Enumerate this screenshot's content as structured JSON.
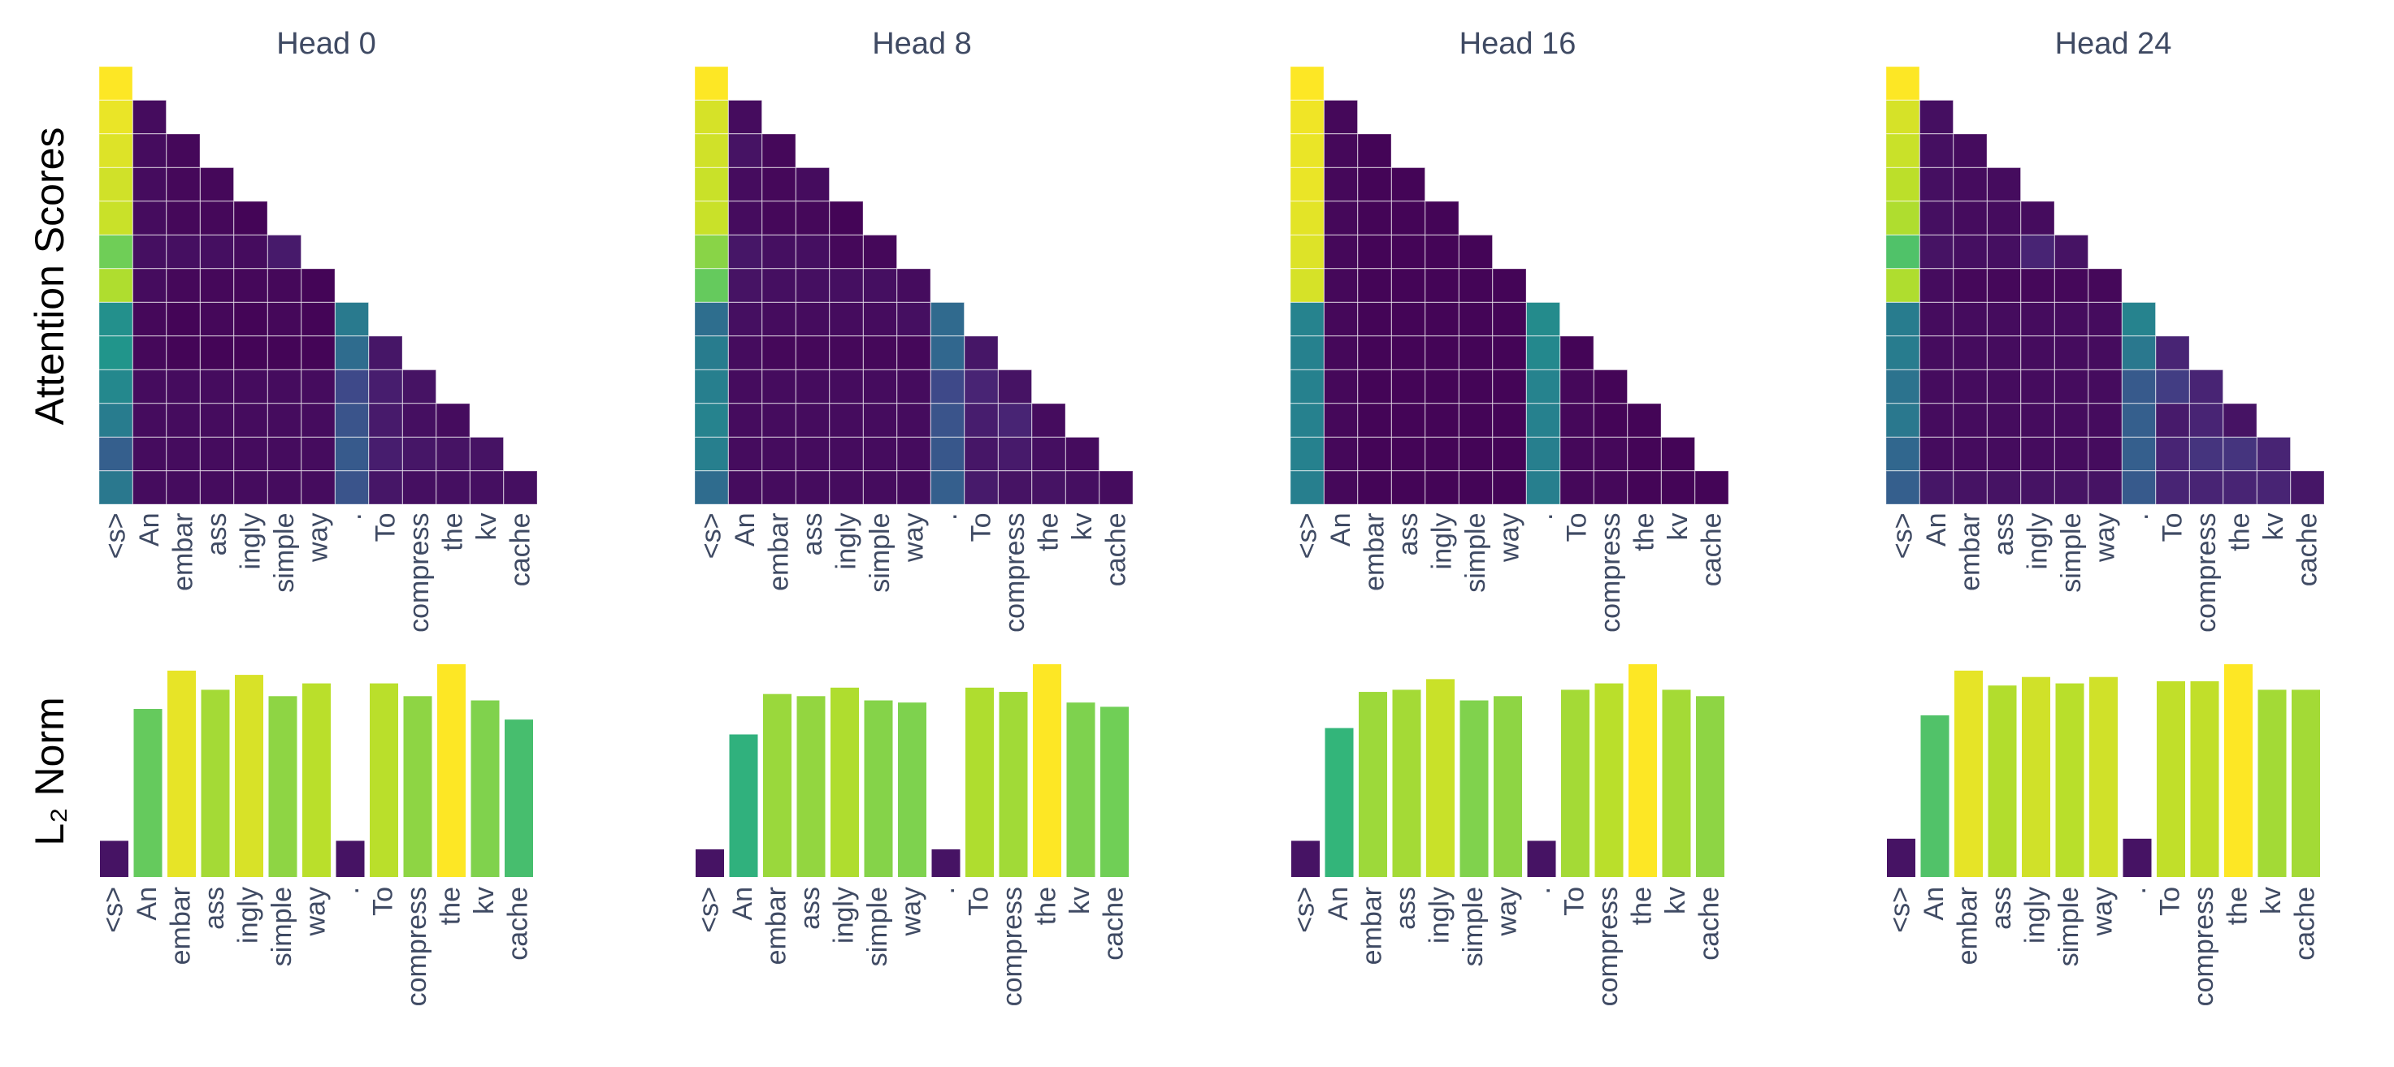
{
  "figure": {
    "row_labels": [
      "Attention Scores",
      "L₂ Norm"
    ]
  },
  "chart_data": [
    {
      "type": "heatmap",
      "title": "Head 0",
      "tokens": [
        "<s>",
        "An",
        "embar",
        "ass",
        "ingly",
        "simple",
        "way",
        ".",
        "To",
        "compress",
        "the",
        "kv",
        "cache"
      ],
      "values": [
        [
          1.0
        ],
        [
          0.97,
          0.03
        ],
        [
          0.95,
          0.03,
          0.02
        ],
        [
          0.93,
          0.03,
          0.02,
          0.02
        ],
        [
          0.92,
          0.03,
          0.02,
          0.02,
          0.01
        ],
        [
          0.78,
          0.04,
          0.04,
          0.04,
          0.03,
          0.07
        ],
        [
          0.88,
          0.03,
          0.02,
          0.02,
          0.02,
          0.02,
          0.01
        ],
        [
          0.5,
          0.02,
          0.01,
          0.02,
          0.01,
          0.02,
          0.01,
          0.41
        ],
        [
          0.52,
          0.02,
          0.01,
          0.01,
          0.01,
          0.01,
          0.01,
          0.35,
          0.06
        ],
        [
          0.47,
          0.03,
          0.03,
          0.03,
          0.03,
          0.03,
          0.03,
          0.22,
          0.08,
          0.05
        ],
        [
          0.42,
          0.03,
          0.03,
          0.03,
          0.03,
          0.03,
          0.03,
          0.26,
          0.07,
          0.04,
          0.03
        ],
        [
          0.3,
          0.03,
          0.03,
          0.03,
          0.03,
          0.03,
          0.03,
          0.28,
          0.08,
          0.06,
          0.05,
          0.05
        ],
        [
          0.4,
          0.03,
          0.03,
          0.03,
          0.03,
          0.03,
          0.03,
          0.26,
          0.06,
          0.04,
          0.04,
          0.04,
          0.04
        ]
      ]
    },
    {
      "type": "heatmap",
      "title": "Head 8",
      "tokens": [
        "<s>",
        "An",
        "embar",
        "ass",
        "ingly",
        "simple",
        "way",
        ".",
        "To",
        "compress",
        "the",
        "kv",
        "cache"
      ],
      "values": [
        [
          1.0
        ],
        [
          0.94,
          0.03
        ],
        [
          0.93,
          0.05,
          0.02
        ],
        [
          0.92,
          0.03,
          0.02,
          0.03
        ],
        [
          0.92,
          0.03,
          0.02,
          0.02,
          0.01
        ],
        [
          0.82,
          0.06,
          0.04,
          0.04,
          0.02,
          0.02
        ],
        [
          0.76,
          0.05,
          0.04,
          0.04,
          0.04,
          0.04,
          0.03
        ],
        [
          0.36,
          0.04,
          0.03,
          0.03,
          0.03,
          0.03,
          0.04,
          0.34
        ],
        [
          0.42,
          0.03,
          0.02,
          0.02,
          0.02,
          0.02,
          0.02,
          0.33,
          0.06
        ],
        [
          0.43,
          0.03,
          0.03,
          0.03,
          0.03,
          0.03,
          0.03,
          0.22,
          0.1,
          0.05
        ],
        [
          0.45,
          0.03,
          0.03,
          0.03,
          0.03,
          0.03,
          0.03,
          0.26,
          0.08,
          0.1,
          0.03
        ],
        [
          0.43,
          0.03,
          0.03,
          0.03,
          0.03,
          0.03,
          0.03,
          0.27,
          0.06,
          0.07,
          0.04,
          0.03
        ],
        [
          0.35,
          0.03,
          0.03,
          0.03,
          0.03,
          0.03,
          0.03,
          0.3,
          0.07,
          0.05,
          0.05,
          0.04,
          0.03
        ]
      ]
    },
    {
      "type": "heatmap",
      "title": "Head 16",
      "tokens": [
        "<s>",
        "An",
        "embar",
        "ass",
        "ingly",
        "simple",
        "way",
        ".",
        "To",
        "compress",
        "the",
        "kv",
        "cache"
      ],
      "values": [
        [
          1.0
        ],
        [
          0.98,
          0.02
        ],
        [
          0.97,
          0.02,
          0.01
        ],
        [
          0.97,
          0.02,
          0.01,
          0.01
        ],
        [
          0.96,
          0.02,
          0.01,
          0.01,
          0.01
        ],
        [
          0.95,
          0.02,
          0.01,
          0.01,
          0.01,
          0.01
        ],
        [
          0.94,
          0.02,
          0.01,
          0.01,
          0.01,
          0.01,
          0.01
        ],
        [
          0.45,
          0.02,
          0.01,
          0.01,
          0.01,
          0.01,
          0.01,
          0.48
        ],
        [
          0.44,
          0.02,
          0.01,
          0.01,
          0.01,
          0.01,
          0.01,
          0.47,
          0.01
        ],
        [
          0.44,
          0.02,
          0.01,
          0.01,
          0.01,
          0.01,
          0.01,
          0.45,
          0.02,
          0.01
        ],
        [
          0.44,
          0.02,
          0.01,
          0.01,
          0.01,
          0.01,
          0.01,
          0.44,
          0.02,
          0.01,
          0.01
        ],
        [
          0.44,
          0.02,
          0.01,
          0.01,
          0.01,
          0.01,
          0.01,
          0.43,
          0.02,
          0.02,
          0.01,
          0.01
        ],
        [
          0.43,
          0.02,
          0.01,
          0.01,
          0.01,
          0.01,
          0.01,
          0.43,
          0.02,
          0.02,
          0.01,
          0.01,
          0.01
        ]
      ]
    },
    {
      "type": "heatmap",
      "title": "Head 24",
      "tokens": [
        "<s>",
        "An",
        "embar",
        "ass",
        "ingly",
        "simple",
        "way",
        ".",
        "To",
        "compress",
        "the",
        "kv",
        "cache"
      ],
      "values": [
        [
          1.0
        ],
        [
          0.94,
          0.04
        ],
        [
          0.92,
          0.04,
          0.03
        ],
        [
          0.9,
          0.04,
          0.03,
          0.03
        ],
        [
          0.88,
          0.04,
          0.03,
          0.03,
          0.03
        ],
        [
          0.72,
          0.05,
          0.04,
          0.04,
          0.1,
          0.05
        ],
        [
          0.88,
          0.03,
          0.02,
          0.02,
          0.02,
          0.02,
          0.02
        ],
        [
          0.42,
          0.03,
          0.03,
          0.03,
          0.03,
          0.03,
          0.03,
          0.45
        ],
        [
          0.42,
          0.03,
          0.03,
          0.03,
          0.03,
          0.03,
          0.03,
          0.4,
          0.1
        ],
        [
          0.38,
          0.03,
          0.03,
          0.03,
          0.03,
          0.03,
          0.03,
          0.28,
          0.18,
          0.1
        ],
        [
          0.4,
          0.03,
          0.03,
          0.03,
          0.03,
          0.03,
          0.03,
          0.3,
          0.07,
          0.1,
          0.05
        ],
        [
          0.33,
          0.03,
          0.03,
          0.03,
          0.03,
          0.03,
          0.03,
          0.3,
          0.1,
          0.15,
          0.15,
          0.1
        ],
        [
          0.3,
          0.06,
          0.05,
          0.05,
          0.05,
          0.05,
          0.05,
          0.28,
          0.1,
          0.1,
          0.1,
          0.1,
          0.06
        ]
      ]
    },
    {
      "type": "bar",
      "title": "",
      "categories": [
        "<s>",
        "An",
        "embar",
        "ass",
        "ingly",
        "simple",
        "way",
        ".",
        "To",
        "compress",
        "the",
        "kv",
        "cache"
      ],
      "values": [
        17,
        79,
        97,
        88,
        95,
        85,
        91,
        17,
        91,
        85,
        100,
        83,
        74
      ],
      "ylim": [
        0,
        100
      ]
    },
    {
      "type": "bar",
      "title": "",
      "categories": [
        "<s>",
        "An",
        "embar",
        "ass",
        "ingly",
        "simple",
        "way",
        ".",
        "To",
        "compress",
        "the",
        "kv",
        "cache"
      ],
      "values": [
        13,
        67,
        86,
        85,
        89,
        83,
        82,
        13,
        89,
        87,
        100,
        82,
        80
      ],
      "ylim": [
        0,
        100
      ]
    },
    {
      "type": "bar",
      "title": "",
      "categories": [
        "<s>",
        "An",
        "embar",
        "ass",
        "ingly",
        "simple",
        "way",
        ".",
        "To",
        "compress",
        "the",
        "kv",
        "cache"
      ],
      "values": [
        17,
        70,
        87,
        88,
        93,
        83,
        85,
        17,
        88,
        91,
        100,
        88,
        85
      ],
      "ylim": [
        0,
        100
      ]
    },
    {
      "type": "bar",
      "title": "",
      "categories": [
        "<s>",
        "An",
        "embar",
        "ass",
        "ingly",
        "simple",
        "way",
        ".",
        "To",
        "compress",
        "the",
        "kv",
        "cache"
      ],
      "values": [
        18,
        76,
        97,
        90,
        94,
        91,
        94,
        18,
        92,
        92,
        100,
        88,
        88
      ],
      "ylim": [
        0,
        100
      ]
    }
  ]
}
